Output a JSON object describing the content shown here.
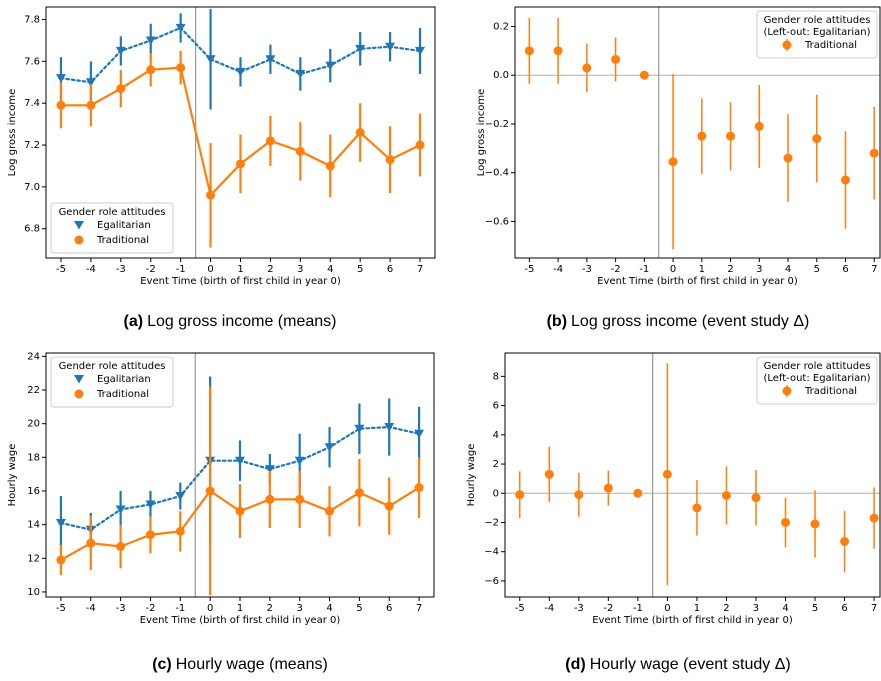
{
  "chart_data": [
    {
      "type": "line",
      "y_label": "Log gross income",
      "x_label": "Event Time (birth of first child in year 0)",
      "caption_label": "(a)",
      "caption": "Log gross income (means)",
      "legend_title": [
        "Gender role attitudes"
      ],
      "legend_loc": "lower left",
      "x": [
        -5,
        -4,
        -3,
        -2,
        -1,
        0,
        1,
        2,
        3,
        4,
        5,
        6,
        7
      ],
      "xlim": [
        -5.5,
        7.5
      ],
      "xticks": [
        -5,
        -4,
        -3,
        -2,
        -1,
        0,
        1,
        2,
        3,
        4,
        5,
        6,
        7
      ],
      "ylim": [
        6.66,
        7.86
      ],
      "yticks": [
        6.8,
        {
          "value": 7,
          "label": "7.0"
        },
        7.2,
        7.4,
        7.6,
        7.8
      ],
      "vline": -0.5,
      "series": [
        {
          "name": "Egalitarian",
          "color": "#1f77b4",
          "marker": "triangle-down",
          "linestyle": "dotted",
          "values": [
            7.52,
            7.5,
            7.65,
            7.7,
            7.76,
            7.61,
            7.55,
            7.61,
            7.54,
            7.58,
            7.66,
            7.67,
            7.65
          ],
          "errors": [
            0.1,
            0.1,
            0.07,
            0.08,
            0.07,
            0.24,
            0.07,
            0.07,
            0.08,
            0.08,
            0.08,
            0.07,
            0.11
          ]
        },
        {
          "name": "Traditional",
          "color": "#ff7f0e",
          "marker": "circle",
          "linestyle": "solid",
          "values": [
            7.39,
            7.39,
            7.47,
            7.56,
            7.57,
            6.96,
            7.11,
            7.22,
            7.17,
            7.1,
            7.26,
            7.13,
            7.2
          ],
          "errors": [
            0.11,
            0.1,
            0.09,
            0.08,
            0.08,
            0.25,
            0.14,
            0.12,
            0.14,
            0.15,
            0.14,
            0.16,
            0.15
          ]
        }
      ]
    },
    {
      "type": "errorbar",
      "y_label": "Log gross income",
      "x_label": "Event Time (birth of first child in year 0)",
      "caption_label": "(b)",
      "caption": "Log gross income (event study Δ)",
      "legend_title": [
        "Gender role attitudes",
        "(Left-out: Egalitarian)"
      ],
      "legend_loc": "upper right",
      "x": [
        -5,
        -4,
        -3,
        -2,
        -1,
        0,
        1,
        2,
        3,
        4,
        5,
        6,
        7
      ],
      "xlim": [
        -5.5,
        7.2
      ],
      "xticks": [
        -5,
        -4,
        -3,
        -2,
        -1,
        0,
        1,
        2,
        3,
        4,
        5,
        6,
        7
      ],
      "ylim": [
        -0.75,
        0.28
      ],
      "yticks": [
        {
          "value": -0.6,
          "label": "−0.6"
        },
        {
          "value": -0.4,
          "label": "−0.4"
        },
        {
          "value": -0.2,
          "label": "−0.2"
        },
        {
          "value": 0,
          "label": "0.0"
        },
        0.2
      ],
      "vline": -0.5,
      "hline": 0,
      "series": [
        {
          "name": "Traditional",
          "color": "#ff7f0e",
          "marker": "circle",
          "values": [
            0.1,
            0.1,
            0.03,
            0.065,
            0,
            -0.355,
            -0.25,
            -0.25,
            -0.21,
            -0.34,
            -0.26,
            -0.43,
            -0.32
          ],
          "errors": [
            0.135,
            0.135,
            0.1,
            0.09,
            0,
            0.36,
            0.155,
            0.14,
            0.17,
            0.18,
            0.18,
            0.2,
            0.19
          ]
        }
      ]
    },
    {
      "type": "line",
      "y_label": "Hourly wage",
      "x_label": "Event Time (birth of first child in year 0)",
      "caption_label": "(c)",
      "caption": "Hourly wage (means)",
      "legend_title": [
        "Gender role attitudes"
      ],
      "legend_loc": "upper left",
      "x": [
        -5,
        -4,
        -3,
        -2,
        -1,
        0,
        1,
        2,
        3,
        4,
        5,
        6,
        7
      ],
      "xlim": [
        -5.5,
        7.5
      ],
      "xticks": [
        -5,
        -4,
        -3,
        -2,
        -1,
        0,
        1,
        2,
        3,
        4,
        5,
        6,
        7
      ],
      "ylim": [
        9.7,
        24.2
      ],
      "yticks": [
        10,
        12,
        14,
        16,
        18,
        20,
        22,
        24
      ],
      "vline": -0.5,
      "series": [
        {
          "name": "Egalitarian",
          "color": "#1f77b4",
          "marker": "triangle-down",
          "linestyle": "dotted",
          "values": [
            14.1,
            13.7,
            14.9,
            15.2,
            15.7,
            17.8,
            17.8,
            17.3,
            17.8,
            18.6,
            19.7,
            19.8,
            19.4
          ],
          "errors": [
            1.6,
            1,
            1.1,
            0.8,
            0.8,
            5,
            1.2,
            0.9,
            1.6,
            1.2,
            1.5,
            1.7,
            1.6
          ]
        },
        {
          "name": "Traditional",
          "color": "#ff7f0e",
          "marker": "circle",
          "linestyle": "solid",
          "values": [
            11.9,
            12.9,
            12.7,
            13.4,
            13.6,
            16,
            14.8,
            15.5,
            15.5,
            14.8,
            15.9,
            15.1,
            16.2
          ],
          "errors": [
            0.9,
            1.6,
            1.3,
            1.1,
            1.2,
            6.2,
            1.6,
            1.7,
            1.7,
            1.5,
            2,
            1.7,
            1.8
          ]
        }
      ]
    },
    {
      "type": "errorbar",
      "y_label": "Hourly wage",
      "x_label": "Event Time (birth of first child in year 0)",
      "caption_label": "(d)",
      "caption": "Hourly wage (event study Δ)",
      "legend_title": [
        "Gender role attitudes",
        "(Left-out: Egalitarian)"
      ],
      "legend_loc": "upper right",
      "x": [
        -5,
        -4,
        -3,
        -2,
        -1,
        0,
        1,
        2,
        3,
        4,
        5,
        6,
        7
      ],
      "xlim": [
        -5.5,
        7.2
      ],
      "xticks": [
        -5,
        -4,
        -3,
        -2,
        -1,
        0,
        1,
        2,
        3,
        4,
        5,
        6,
        7
      ],
      "ylim": [
        -7.1,
        9.6
      ],
      "yticks": [
        {
          "value": -6,
          "label": "−6"
        },
        {
          "value": -4,
          "label": "−4"
        },
        {
          "value": -2,
          "label": "−2"
        },
        0,
        2,
        4,
        6,
        8
      ],
      "vline": -0.5,
      "hline": 0,
      "series": [
        {
          "name": "Traditional",
          "color": "#ff7f0e",
          "marker": "circle",
          "values": [
            -0.1,
            1.3,
            -0.1,
            0.35,
            0,
            1.3,
            -1,
            -0.15,
            -0.3,
            -2,
            -2.1,
            -3.3,
            -1.7
          ],
          "errors": [
            1.6,
            1.9,
            1.5,
            1.2,
            0,
            7.6,
            1.9,
            2,
            1.9,
            1.7,
            2.3,
            2.1,
            2.1
          ]
        }
      ]
    }
  ]
}
